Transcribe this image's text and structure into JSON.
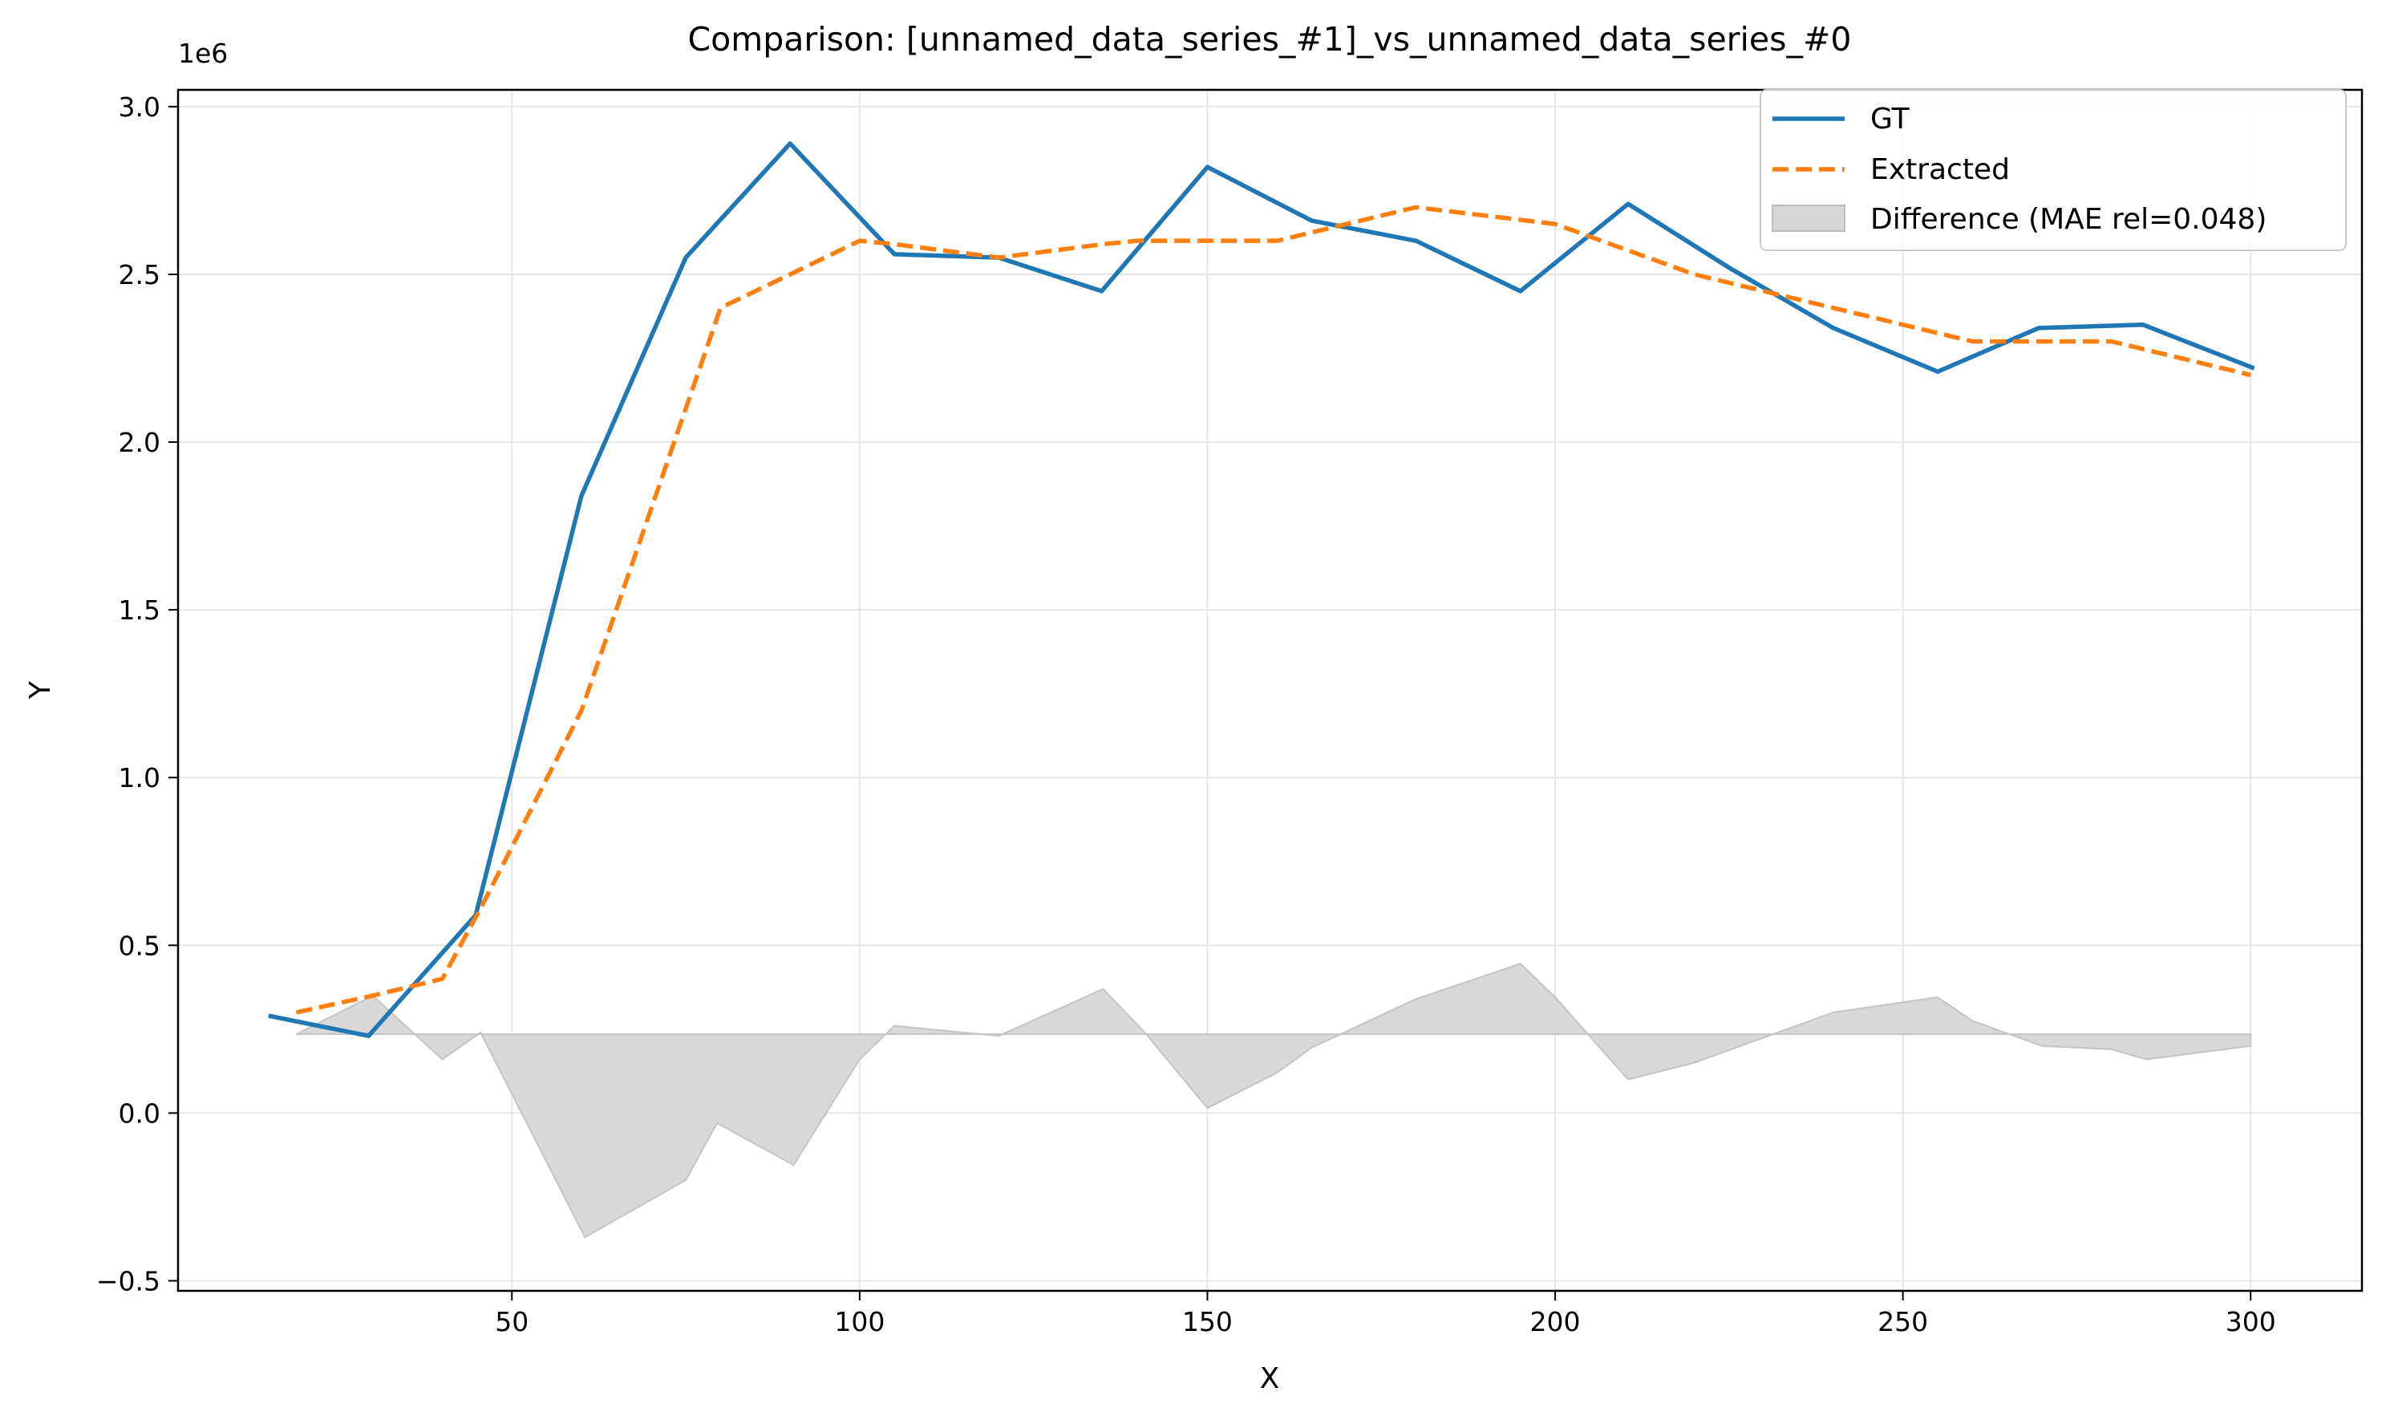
{
  "chart_data": {
    "type": "line",
    "title": "Comparison: [unnamed_data_series_#1]_vs_unnamed_data_series_#0",
    "xlabel": "X",
    "ylabel": "Y",
    "y_offset_text": "1e6",
    "xlim": [
      2,
      316
    ],
    "ylim": [
      -530000,
      3050000
    ],
    "x_ticks": [
      50,
      100,
      150,
      200,
      250,
      300
    ],
    "x_tick_labels": [
      "50",
      "100",
      "150",
      "200",
      "250",
      "300"
    ],
    "y_ticks": [
      -500000,
      0,
      500000,
      1000000,
      1500000,
      2000000,
      2500000,
      3000000
    ],
    "y_tick_labels": [
      "−0.5",
      "0.0",
      "0.5",
      "1.0",
      "1.5",
      "2.0",
      "2.5",
      "3.0"
    ],
    "grid": true,
    "legend_position": "top-right",
    "legend": [
      "GT",
      "Extracted",
      "Difference (MAE rel=0.048)"
    ],
    "series": [
      {
        "name": "GT",
        "color": "#1f77b4",
        "style": "solid",
        "x": [
          15,
          29.4,
          44.8,
          60,
          75,
          90,
          105,
          120,
          134.8,
          150,
          165,
          180,
          195,
          210.5,
          225,
          240,
          255,
          269.5,
          284.5,
          300.5
        ],
        "y": [
          290000,
          230000,
          590000,
          1840000,
          2550000,
          2890000,
          2560000,
          2550000,
          2450000,
          2820000,
          2660000,
          2600000,
          2450000,
          2710000,
          2520000,
          2340000,
          2210000,
          2340000,
          2350000,
          2220000
        ]
      },
      {
        "name": "Extracted",
        "color": "#ff7f0e",
        "style": "dashed",
        "x": [
          19,
          30,
          40,
          46,
          60,
          75,
          80,
          90,
          100,
          105,
          120,
          135,
          140,
          160,
          180,
          200,
          220,
          240,
          260,
          270,
          280,
          300
        ],
        "y": [
          300000,
          350000,
          400000,
          630000,
          1200000,
          2100000,
          2400000,
          2500000,
          2600000,
          2590000,
          2550000,
          2590000,
          2600000,
          2600000,
          2700000,
          2650000,
          2500000,
          2400000,
          2300000,
          2300000,
          2300000,
          2200000
        ]
      },
      {
        "name": "Difference (MAE rel=0.048)",
        "type": "fill_between",
        "color": "#d6d6d6",
        "baseline": 235000,
        "x": [
          19,
          30,
          40,
          45.5,
          60.5,
          75,
          79.5,
          90.5,
          100,
          105,
          120,
          135,
          141,
          150,
          160,
          165,
          180,
          195,
          200,
          210.5,
          220,
          240,
          255,
          260,
          270,
          280,
          285,
          300
        ],
        "y": [
          235000,
          350000,
          160000,
          240000,
          -370000,
          -200000,
          -30000,
          -155000,
          160000,
          260000,
          230000,
          370000,
          240000,
          15000,
          120000,
          195000,
          340000,
          445000,
          345000,
          100000,
          150000,
          300000,
          345000,
          275000,
          200000,
          190000,
          160000,
          200000
        ]
      }
    ]
  }
}
